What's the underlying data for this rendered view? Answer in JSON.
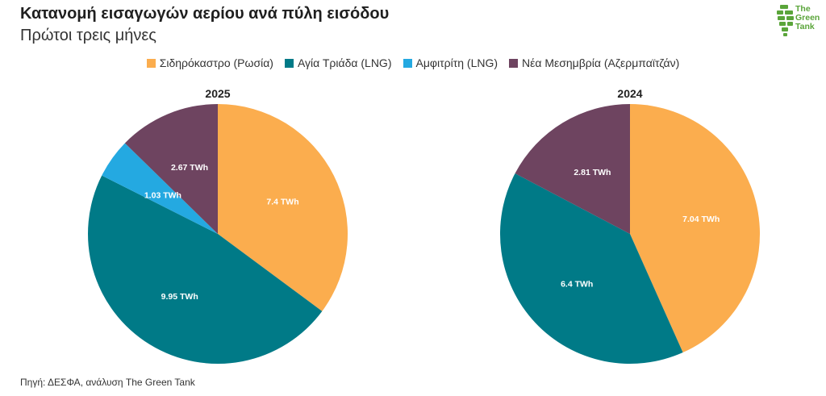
{
  "header": {
    "title": "Κατανομή εισαγωγών αερίου ανά πύλη εισόδου",
    "subtitle": "Πρώτοι τρεις μήνες"
  },
  "logo": {
    "text": "The Green Tank",
    "color": "#5aa53a"
  },
  "legend": [
    {
      "label": "Σιδηρόκαστρο (Ρωσία)",
      "color": "#FBAD4E"
    },
    {
      "label": "Αγία Τριάδα (LNG)",
      "color": "#007A87"
    },
    {
      "label": "Αμφιτρίτη (LNG)",
      "color": "#24A9E1"
    },
    {
      "label": "Νέα Μεσημβρία (Αζερμπαϊτζάν)",
      "color": "#6E4460"
    }
  ],
  "source": "Πηγή: ΔΕΣΦΑ, ανάλυση The Green Tank",
  "chart_data": [
    {
      "type": "pie",
      "title": "2025",
      "start_angle_deg": 0,
      "direction": "clockwise",
      "slices": [
        {
          "label": "Σιδηρόκαστρο (Ρωσία)",
          "value": 7.4,
          "text": "7.4 TWh",
          "color": "#FBAD4E"
        },
        {
          "label": "Αγία Τριάδα (LNG)",
          "value": 9.95,
          "text": "9.95 TWh",
          "color": "#007A87"
        },
        {
          "label": "Αμφιτρίτη (LNG)",
          "value": 1.03,
          "text": "1.03 TWh",
          "color": "#24A9E1"
        },
        {
          "label": "Νέα Μεσημβρία (Αζερμπαϊτζάν)",
          "value": 2.67,
          "text": "2.67 TWh",
          "color": "#6E4460"
        }
      ]
    },
    {
      "type": "pie",
      "title": "2024",
      "start_angle_deg": 0,
      "direction": "clockwise",
      "slices": [
        {
          "label": "Σιδηρόκαστρο (Ρωσία)",
          "value": 7.04,
          "text": "7.04 TWh",
          "color": "#FBAD4E"
        },
        {
          "label": "Αγία Τριάδα (LNG)",
          "value": 6.4,
          "text": "6.4 TWh",
          "color": "#007A87"
        },
        {
          "label": "Νέα Μεσημβρία (Αζερμπαϊτζάν)",
          "value": 2.81,
          "text": "2.81 TWh",
          "color": "#6E4460"
        }
      ]
    }
  ]
}
